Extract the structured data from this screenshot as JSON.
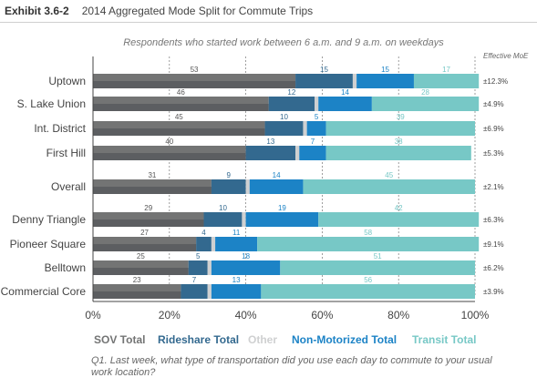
{
  "header": {
    "exhibit_number": "Exhibit 3.6-2",
    "title": "2014 Aggregated Mode Split for Commute Trips"
  },
  "footnote": "Q1.  Last week, what type of transportation did you use each day to commute to your usual work location?",
  "colors": {
    "SOV Total": "#737474",
    "SOV Total dark": "#5c5e61",
    "Rideshare Total": "#33698f",
    "Other": "#cfd0d1",
    "Non-Motorized Total": "#1c83c6",
    "Transit Total": "#77c8c6"
  },
  "chart_data": {
    "type": "bar",
    "orientation": "horizontal",
    "stacked": true,
    "subtitle": "Respondents who started work between 6 a.m. and 9 a.m. on weekdays",
    "moe_header": "Effective MoE",
    "categories": [
      "Uptown",
      "S. Lake Union",
      "Int. District",
      "First Hill",
      "Overall",
      "Denny Triangle",
      "Pioneer Square",
      "Belltown",
      "Commercial Core"
    ],
    "series": [
      {
        "name": "SOV Total",
        "values": [
          53,
          46,
          45,
          40,
          31,
          29,
          27,
          25,
          23
        ]
      },
      {
        "name": "Rideshare Total",
        "values": [
          15,
          12,
          10,
          13,
          9,
          10,
          4,
          5,
          7
        ]
      },
      {
        "name": "Other",
        "values": [
          1,
          1,
          1,
          1,
          1,
          1,
          1,
          1,
          1
        ]
      },
      {
        "name": "Non-Motorized Total",
        "values": [
          15,
          14,
          5,
          7,
          14,
          19,
          11,
          18,
          13
        ]
      },
      {
        "name": "Transit Total",
        "values": [
          17,
          28,
          39,
          38,
          45,
          42,
          58,
          51,
          56
        ]
      }
    ],
    "value_labels_shown": [
      "SOV Total",
      "Rideshare Total",
      "Non-Motorized Total",
      "Transit Total"
    ],
    "moe": [
      "±12.3%",
      "±4.9%",
      "±6.9%",
      "±5.3%",
      "±2.1%",
      "±6.3%",
      "±9.1%",
      "±6.2%",
      "±3.9%"
    ],
    "xticks": [
      "0%",
      "20%",
      "40%",
      "60%",
      "80%",
      "100%"
    ],
    "xlim": [
      0,
      100
    ],
    "grid": true,
    "legend_position": "bottom"
  }
}
